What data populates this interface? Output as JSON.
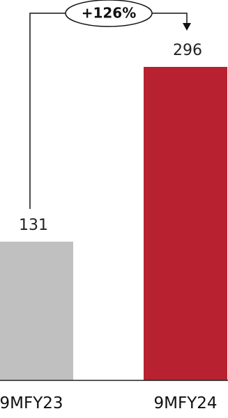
{
  "chart_data": {
    "type": "bar",
    "categories": [
      "9MFY23",
      "9MFY24"
    ],
    "values": [
      131,
      296
    ],
    "value_labels": [
      "131",
      "296"
    ],
    "ylim": [
      0,
      296
    ],
    "colors": [
      "#c0c0c0",
      "#b82230"
    ],
    "grid": false,
    "annotation": {
      "text": "+126%",
      "from": "9MFY23",
      "to": "9MFY24"
    }
  }
}
